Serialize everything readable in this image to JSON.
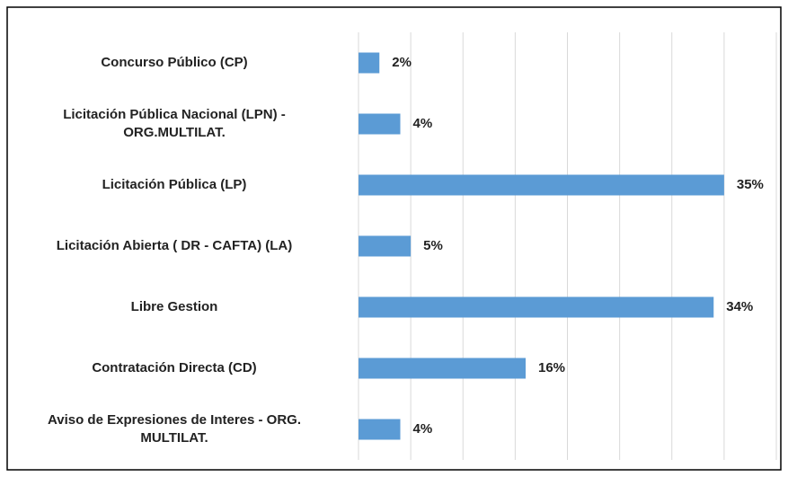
{
  "chart_data": {
    "type": "bar",
    "orientation": "horizontal",
    "categories": [
      "Concurso Público (CP)",
      "Licitación Pública Nacional (LPN) -\nORG.MULTILAT.",
      "Licitación Pública (LP)",
      "Licitación Abierta ( DR - CAFTA) (LA)",
      "Libre Gestion",
      "Contratación Directa (CD)",
      "Aviso de Expresiones de Interes - ORG.\nMULTILAT."
    ],
    "values": [
      2,
      4,
      35,
      5,
      34,
      16,
      4
    ],
    "value_labels": [
      "2%",
      "4%",
      "35%",
      "5%",
      "34%",
      "16%",
      "4%"
    ],
    "color": "#5b9bd5",
    "xlim": [
      0,
      40
    ],
    "xticks": [
      0,
      5,
      10,
      15,
      20,
      25,
      30,
      35,
      40
    ],
    "grid": true
  }
}
